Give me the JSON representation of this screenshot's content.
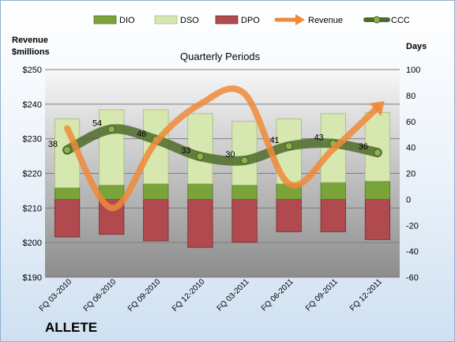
{
  "company": "ALLETE",
  "chart_data": {
    "type": "bar",
    "title": "Quarterly Periods",
    "left_axis": {
      "label_line1": "Revenue",
      "label_line2": "$millions",
      "min": 190,
      "max": 250,
      "step": 10,
      "prefix": "$"
    },
    "right_axis": {
      "label": "Days",
      "min": -60,
      "max": 100,
      "step": 20
    },
    "categories": [
      "FQ 03-2010",
      "FQ 06-2010",
      "FQ 09-2010",
      "FQ 12-2010",
      "FQ 03-2011",
      "FQ 06-2011",
      "FQ 09-2011",
      "FQ 12-2011"
    ],
    "series": [
      {
        "name": "DIO",
        "axis": "right",
        "kind": "stacked-bar",
        "color": "#7aa33a",
        "values": [
          9,
          11,
          12,
          12,
          11,
          12,
          13,
          14
        ]
      },
      {
        "name": "DSO",
        "axis": "right",
        "kind": "stacked-bar",
        "color": "#d6e8b0",
        "values": [
          53,
          58,
          57,
          54,
          49,
          50,
          53,
          53
        ]
      },
      {
        "name": "DPO",
        "axis": "right",
        "kind": "negative-bar",
        "color": "#b04a4e",
        "values": [
          -29,
          -27,
          -32,
          -37,
          -33,
          -25,
          -25,
          -31
        ]
      },
      {
        "name": "Revenue",
        "axis": "left",
        "kind": "line",
        "color": "#ee8a3a",
        "values": [
          233,
          210,
          229,
          240,
          243,
          217,
          227,
          239
        ]
      },
      {
        "name": "CCC",
        "axis": "right",
        "kind": "line",
        "color": "#4d6b2a",
        "values": [
          38,
          54,
          46,
          33,
          30,
          41,
          43,
          36
        ]
      }
    ],
    "legend_position": "top",
    "grid": true
  }
}
